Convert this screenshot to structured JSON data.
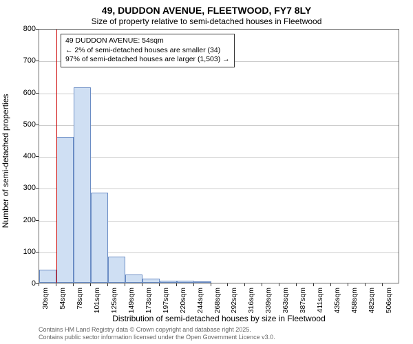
{
  "title": "49, DUDDON AVENUE, FLEETWOOD, FY7 8LY",
  "subtitle": "Size of property relative to semi-detached houses in Fleetwood",
  "y_axis_title": "Number of semi-detached properties",
  "x_axis_title": "Distribution of semi-detached houses by size in Fleetwood",
  "chart": {
    "type": "histogram",
    "background_color": "#ffffff",
    "grid_color": "#cccccc",
    "border_color": "#666666",
    "bar_fill": "#cfdff3",
    "bar_stroke": "#6a8cc4",
    "marker_color": "#cc0000",
    "y_min": 0,
    "y_max": 800,
    "y_ticks": [
      0,
      100,
      200,
      300,
      400,
      500,
      600,
      700,
      800
    ],
    "x_start": 30,
    "x_step": 24,
    "x_bins": 21,
    "x_tick_labels": [
      "30sqm",
      "54sqm",
      "78sqm",
      "101sqm",
      "125sqm",
      "149sqm",
      "173sqm",
      "197sqm",
      "220sqm",
      "244sqm",
      "268sqm",
      "292sqm",
      "316sqm",
      "339sqm",
      "363sqm",
      "387sqm",
      "411sqm",
      "435sqm",
      "458sqm",
      "482sqm",
      "506sqm"
    ],
    "bar_values": [
      41,
      459,
      614,
      283,
      83,
      26,
      14,
      6,
      6,
      4,
      0,
      0,
      0,
      0,
      0,
      0,
      0,
      0,
      0,
      0,
      0
    ],
    "marker_x_value": 54,
    "annotation": {
      "line1": "49 DUDDON AVENUE: 54sqm",
      "line2": "← 2% of semi-detached houses are smaller (34)",
      "line3": "97% of semi-detached houses are larger (1,503) →"
    }
  },
  "footer_line1": "Contains HM Land Registry data © Crown copyright and database right 2025.",
  "footer_line2": "Contains public sector information licensed under the Open Government Licence v3.0."
}
